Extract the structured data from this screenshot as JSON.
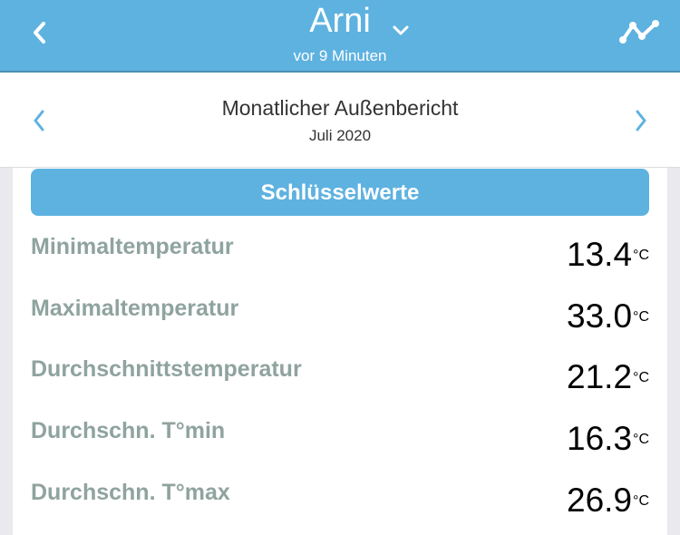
{
  "header": {
    "title": "Arni",
    "subtitle": "vor 9 Minuten",
    "back_icon": "chevron-left-icon",
    "dropdown_icon": "chevron-down-icon",
    "chart_icon": "line-chart-icon",
    "color": "#5eb2e0"
  },
  "report": {
    "title": "Monatlicher Außenbericht",
    "period": "Juli 2020"
  },
  "section": {
    "label": "Schlüsselwerte"
  },
  "rows": [
    {
      "label": "Minimaltemperatur",
      "value": "13.4",
      "unit": "°C"
    },
    {
      "label": "Maximaltemperatur",
      "value": "33.0",
      "unit": "°C"
    },
    {
      "label": "Durchschnittstemperatur",
      "value": "21.2",
      "unit": "°C"
    },
    {
      "label": "Durchschn. T°min",
      "value": "16.3",
      "unit": "°C"
    },
    {
      "label": "Durchschn. T°max",
      "value": "26.9",
      "unit": "°C"
    }
  ]
}
